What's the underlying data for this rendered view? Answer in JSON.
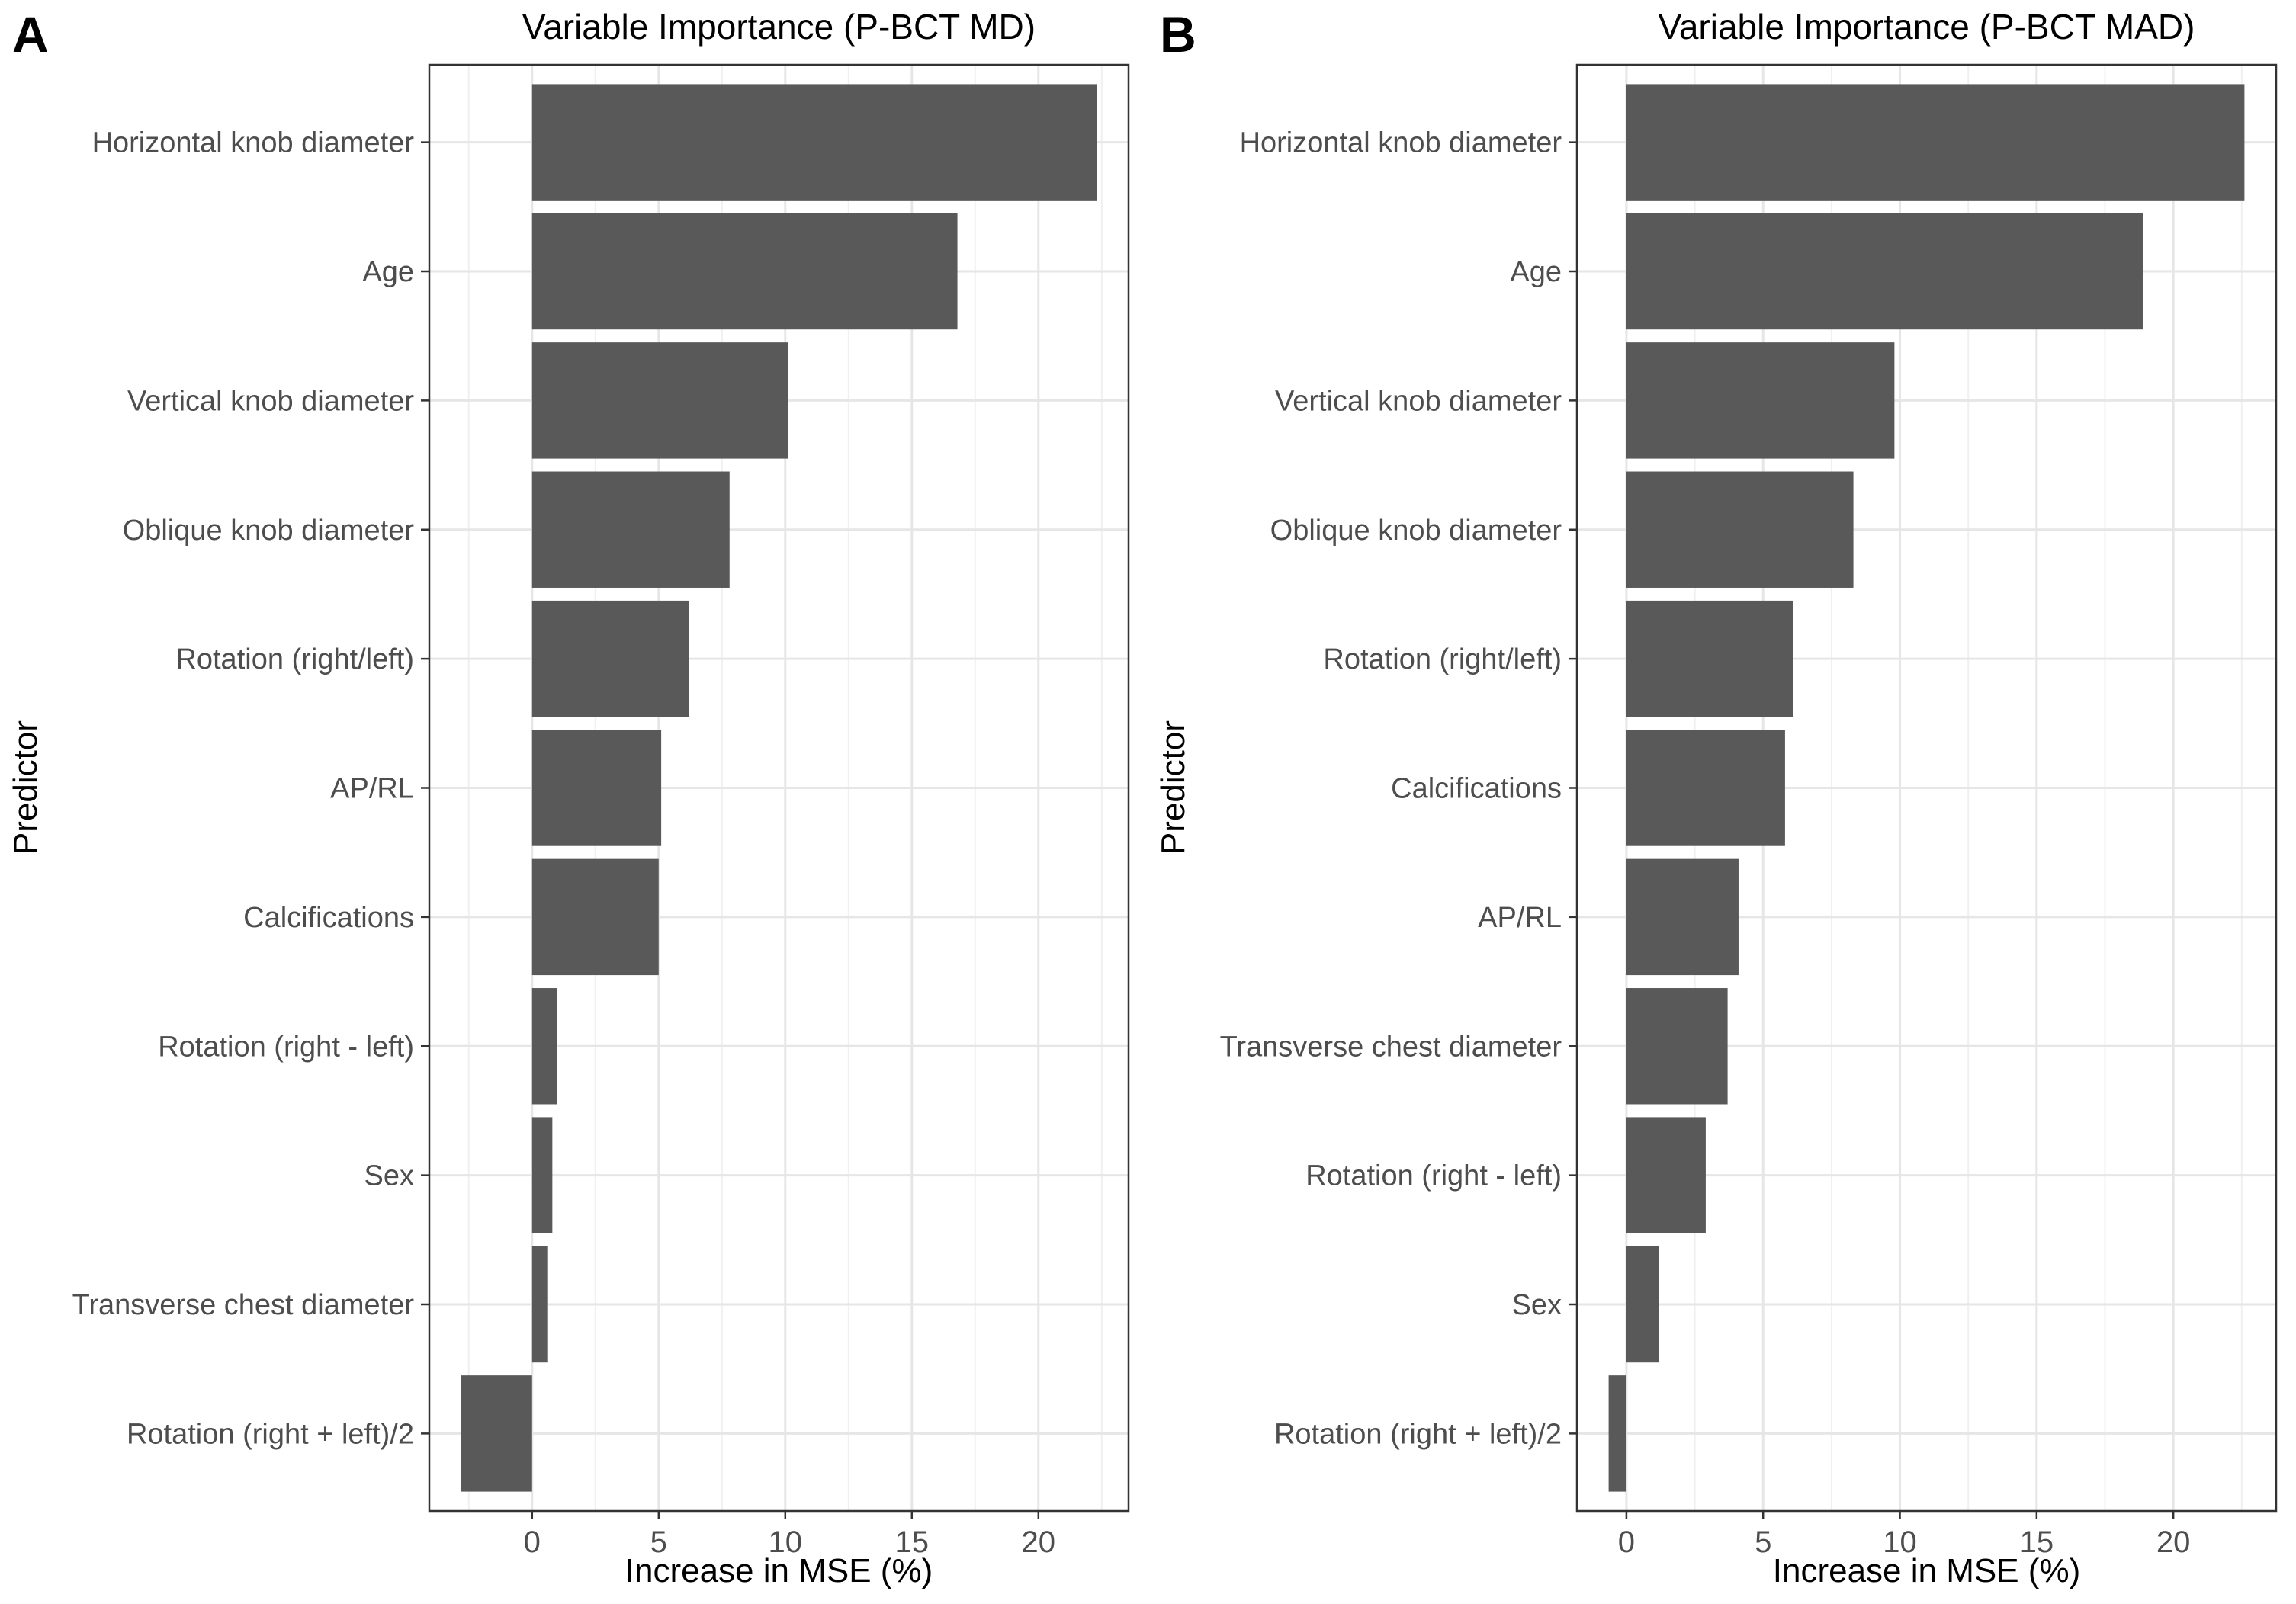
{
  "figure": {
    "background": "#FFFFFF",
    "bar_color": "#595959",
    "grid_major_color": "#E6E6E6",
    "grid_minor_color": "#F0F0F0",
    "border_color": "#333333",
    "tick_color": "#333333",
    "tick_label_color": "#4D4D4D"
  },
  "chart_data": [
    {
      "type": "bar",
      "orientation": "horizontal",
      "panel_label": "A",
      "title": "Variable Importance (P-BCT MD)",
      "xlabel": "Increase in MSE (%)",
      "ylabel": "Predictor",
      "categories": [
        "Horizontal knob diameter",
        "Age",
        "Vertical knob diameter",
        "Oblique knob diameter",
        "Rotation (right/left)",
        "AP/RL",
        "Calcifications",
        "Rotation (right - left)",
        "Sex",
        "Transverse chest diameter",
        "Rotation (right + left)/2"
      ],
      "values": [
        22.3,
        16.8,
        10.1,
        7.8,
        6.2,
        5.1,
        5.0,
        1.0,
        0.8,
        0.6,
        -2.8
      ],
      "x_ticks": [
        0,
        5,
        10,
        15,
        20
      ],
      "x_minor_step": 2.5,
      "xlim": [
        -4.06,
        23.56
      ],
      "grid": true,
      "legend": false
    },
    {
      "type": "bar",
      "orientation": "horizontal",
      "panel_label": "B",
      "title": "Variable Importance (P-BCT MAD)",
      "xlabel": "Increase in MSE (%)",
      "ylabel": "Predictor",
      "categories": [
        "Horizontal knob diameter",
        "Age",
        "Vertical knob diameter",
        "Oblique knob diameter",
        "Rotation (right/left)",
        "Calcifications",
        "AP/RL",
        "Transverse chest diameter",
        "Rotation (right - left)",
        "Sex",
        "Rotation (right + left)/2"
      ],
      "values": [
        22.6,
        18.9,
        9.8,
        8.3,
        6.1,
        5.8,
        4.1,
        3.7,
        2.9,
        1.2,
        -0.65
      ],
      "x_ticks": [
        0,
        5,
        10,
        15,
        20
      ],
      "x_minor_step": 2.5,
      "xlim": [
        -1.81,
        23.76
      ],
      "grid": true,
      "legend": false
    }
  ]
}
